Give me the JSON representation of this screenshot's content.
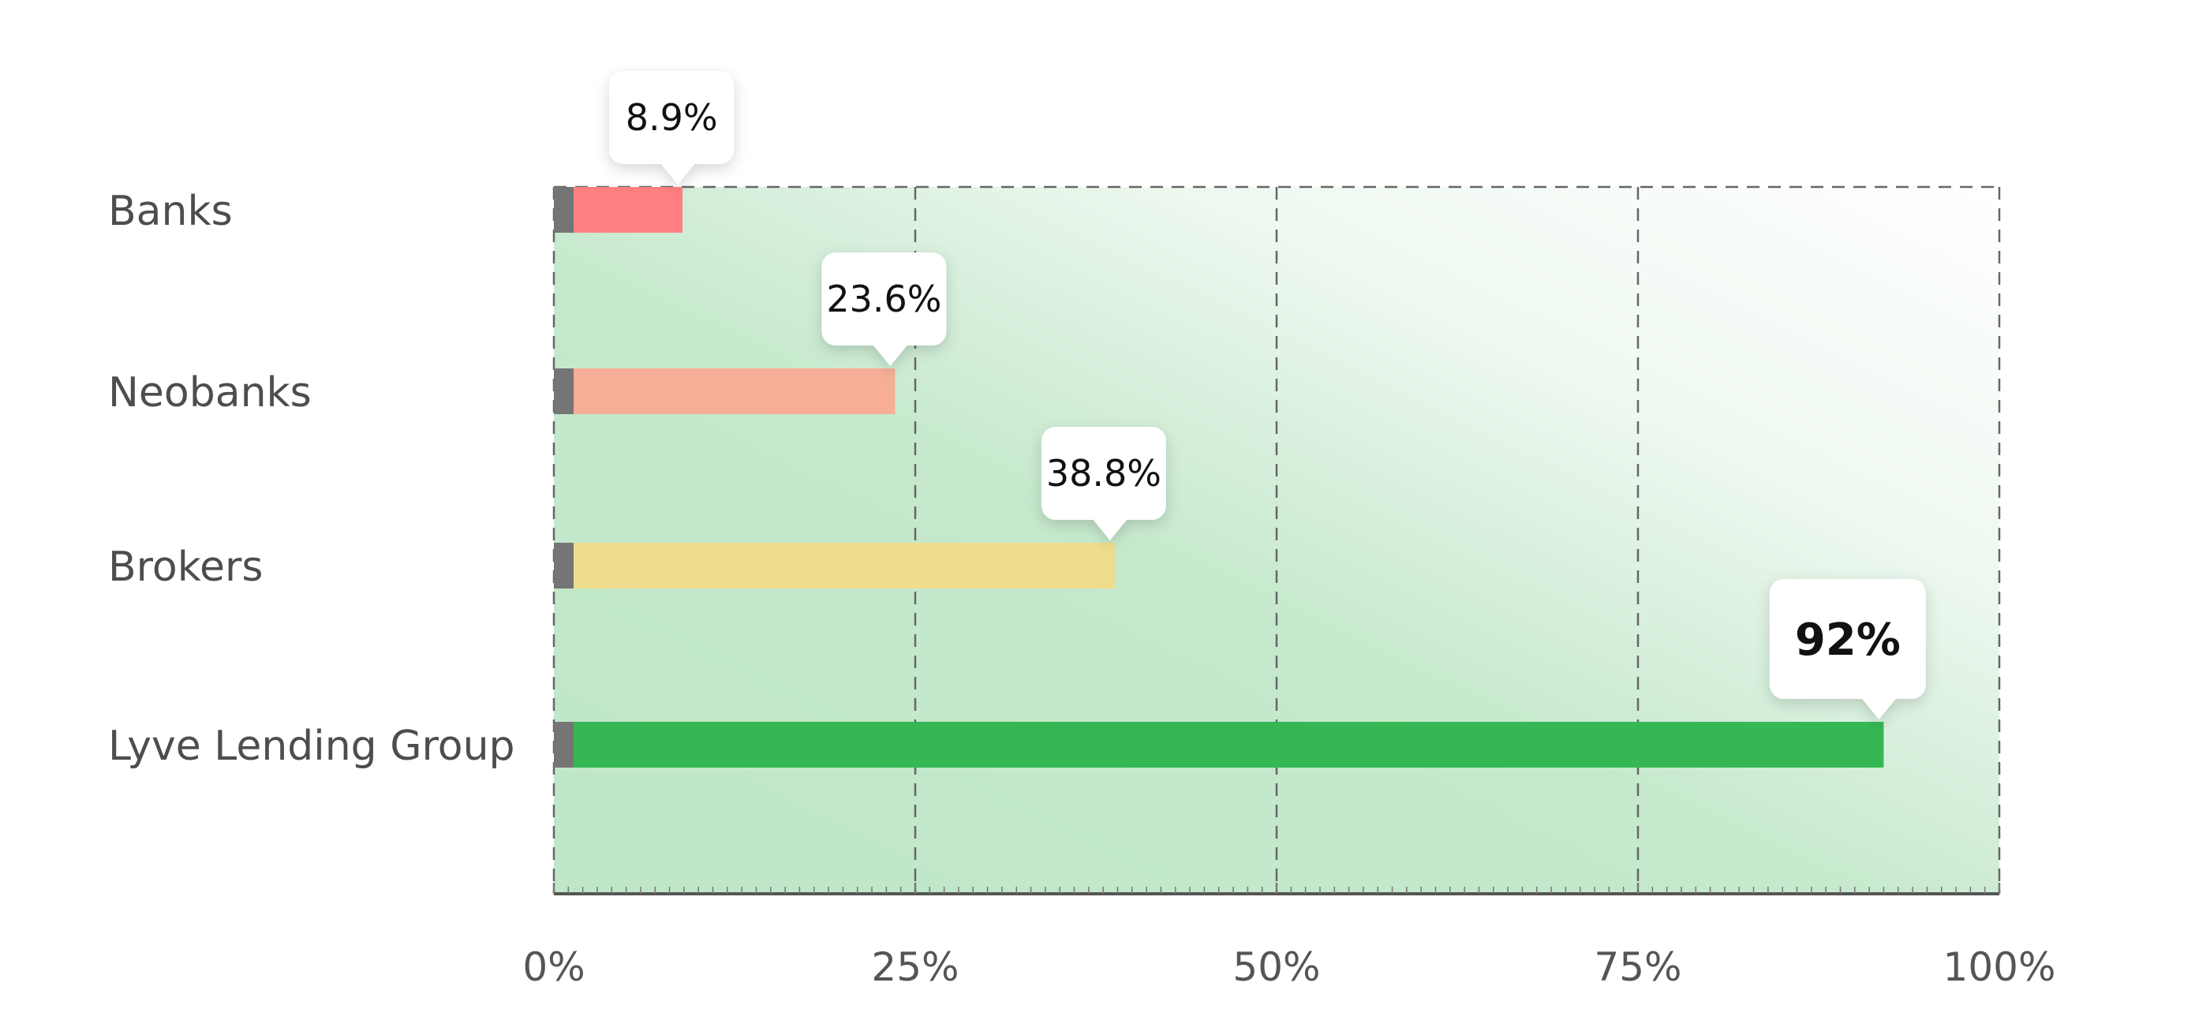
{
  "chart_data": {
    "type": "bar",
    "orientation": "horizontal",
    "categories": [
      "Banks",
      "Neobanks",
      "Brokers",
      "Lyve Lending Group"
    ],
    "values": [
      8.9,
      23.6,
      38.8,
      92
    ],
    "value_labels": [
      "8.9%",
      "23.6%",
      "38.8%",
      "92%"
    ],
    "highlighted_category": "Lyve Lending Group",
    "xlim": [
      0,
      100
    ],
    "x_ticks": [
      0,
      25,
      50,
      75,
      100
    ],
    "x_tick_labels": [
      "0%",
      "25%",
      "50%",
      "75%",
      "100%"
    ],
    "grid": "vertical dashed",
    "legend": "none",
    "title": "",
    "xlabel": "",
    "ylabel": "",
    "colors": {
      "bars": [
        "#ff8080",
        "#f7ae96",
        "#eedd8c",
        "#35b853"
      ],
      "bar_start_stub": "#757575",
      "plot_gradient": "#c0e6c8",
      "grid": "#666666",
      "category_text": "#4d4d4d",
      "tick_text": "#555555",
      "callout_text": "#111111"
    }
  }
}
